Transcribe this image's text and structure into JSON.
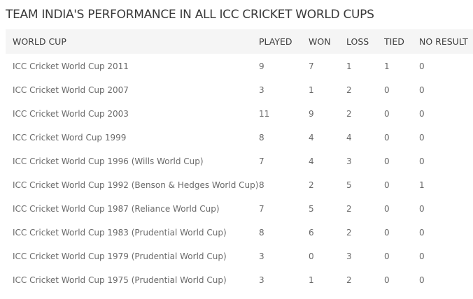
{
  "title": "TEAM INDIA'S PERFORMANCE IN ALL ICC CRICKET WORLD CUPS",
  "table": {
    "headers": {
      "world_cup": "WORLD CUP",
      "played": "PLAYED",
      "won": "WON",
      "loss": "LOSS",
      "tied": "TIED",
      "no_result": "NO RESULT"
    },
    "rows": [
      {
        "world_cup": "ICC Cricket World Cup 2011",
        "played": "9",
        "won": "7",
        "loss": "1",
        "tied": "1",
        "no_result": "0"
      },
      {
        "world_cup": "ICC Cricket World Cup 2007",
        "played": "3",
        "won": "1",
        "loss": "2",
        "tied": "0",
        "no_result": "0"
      },
      {
        "world_cup": "ICC Cricket World Cup 2003",
        "played": "11",
        "won": "9",
        "loss": "2",
        "tied": "0",
        "no_result": "0"
      },
      {
        "world_cup": "ICC Cricket Word Cup 1999",
        "played": "8",
        "won": "4",
        "loss": "4",
        "tied": "0",
        "no_result": "0"
      },
      {
        "world_cup": "ICC Cricket World Cup 1996 (Wills World Cup)",
        "played": "7",
        "won": "4",
        "loss": "3",
        "tied": "0",
        "no_result": "0"
      },
      {
        "world_cup": "ICC Cricket World Cup 1992 (Benson & Hedges World Cup)",
        "played": "8",
        "won": "2",
        "loss": "5",
        "tied": "0",
        "no_result": "1"
      },
      {
        "world_cup": "ICC Cricket World Cup 1987 (Reliance World Cup)",
        "played": "7",
        "won": "5",
        "loss": "2",
        "tied": "0",
        "no_result": "0"
      },
      {
        "world_cup": "ICC Cricket World Cup 1983 (Prudential World Cup)",
        "played": "8",
        "won": "6",
        "loss": "2",
        "tied": "0",
        "no_result": "0"
      },
      {
        "world_cup": "ICC Cricket World Cup 1979 (Prudential World Cup)",
        "played": "3",
        "won": "0",
        "loss": "3",
        "tied": "0",
        "no_result": "0"
      },
      {
        "world_cup": "ICC Cricket World Cup 1975 (Prudential World Cup)",
        "played": "3",
        "won": "1",
        "loss": "2",
        "tied": "0",
        "no_result": "0"
      }
    ]
  }
}
